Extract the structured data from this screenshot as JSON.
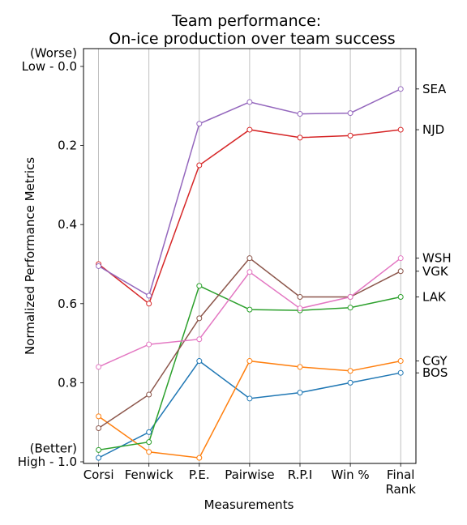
{
  "chart_data": {
    "type": "line",
    "title": "Team performance:",
    "subtitle": "On-ice production over team success",
    "xlabel": "Measurements",
    "ylabel": "Normalized Performance Metrics",
    "categories": [
      "Corsi",
      "Fenwick",
      "P.E.",
      "Pairwise",
      "R.P.I",
      "Win %",
      "Final Rank"
    ],
    "category_lines": [
      [
        "Corsi"
      ],
      [
        "Fenwick"
      ],
      [
        "P.E."
      ],
      [
        "Pairwise"
      ],
      [
        "R.P.I"
      ],
      [
        "Win %"
      ],
      [
        "Final",
        "Rank"
      ]
    ],
    "ylim": [
      1.0,
      0.0
    ],
    "y_inverted": true,
    "yticks": [
      {
        "value": 0.0,
        "lines": [
          "(Worse)",
          "Low - 0.0"
        ]
      },
      {
        "value": 0.2,
        "lines": [
          "0.2"
        ]
      },
      {
        "value": 0.4,
        "lines": [
          "0.4"
        ]
      },
      {
        "value": 0.6,
        "lines": [
          "0.6"
        ]
      },
      {
        "value": 0.8,
        "lines": [
          "0.8"
        ]
      },
      {
        "value": 1.0,
        "lines": [
          "(Better)",
          "High - 1.0"
        ]
      }
    ],
    "grid": "vertical",
    "series": [
      {
        "name": "BOS",
        "color": "#1f77b4",
        "values": [
          0.99,
          0.925,
          0.745,
          0.84,
          0.825,
          0.8,
          0.775
        ]
      },
      {
        "name": "CGY",
        "color": "#ff7f0e",
        "values": [
          0.885,
          0.975,
          0.99,
          0.745,
          0.76,
          0.77,
          0.745
        ]
      },
      {
        "name": "LAK",
        "color": "#2ca02c",
        "values": [
          0.97,
          0.95,
          0.555,
          0.615,
          0.617,
          0.61,
          0.583
        ]
      },
      {
        "name": "NJD",
        "color": "#d62728",
        "values": [
          0.5,
          0.6,
          0.25,
          0.16,
          0.18,
          0.175,
          0.16
        ]
      },
      {
        "name": "SEA",
        "color": "#9467bd",
        "values": [
          0.505,
          0.58,
          0.145,
          0.09,
          0.12,
          0.118,
          0.057
        ]
      },
      {
        "name": "VGK",
        "color": "#8c564b",
        "values": [
          0.915,
          0.83,
          0.637,
          0.485,
          0.583,
          0.583,
          0.518
        ]
      },
      {
        "name": "WSH",
        "color": "#e377c2",
        "values": [
          0.76,
          0.703,
          0.69,
          0.52,
          0.612,
          0.583,
          0.485
        ]
      }
    ]
  }
}
